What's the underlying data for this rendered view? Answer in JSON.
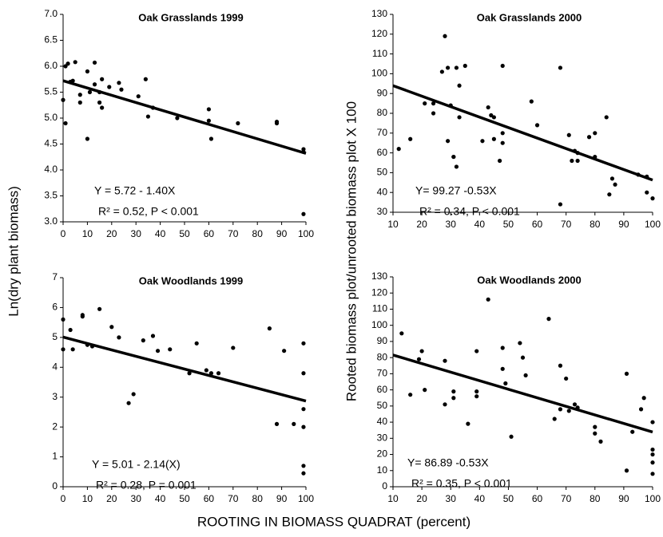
{
  "figure": {
    "xlabel": "ROOTING IN BIOMASS QUADRAT (percent)",
    "ylabel_left": "Ln(dry plant biomass)",
    "ylabel_right": "Rooted biomass plot/unrooted biomass plot X 100"
  },
  "chart_data": [
    {
      "type": "scatter",
      "title": "Oak Grasslands 1999",
      "color": "#000000",
      "x": [
        0,
        1,
        2,
        1,
        3,
        4,
        5,
        7,
        7,
        10,
        10,
        11,
        13,
        13,
        15,
        15,
        16,
        16,
        19,
        23,
        24,
        31,
        34,
        35,
        37,
        47,
        60,
        60,
        61,
        72,
        88,
        88,
        99,
        99,
        99
      ],
      "values": [
        5.35,
        6.0,
        6.05,
        4.9,
        5.7,
        5.72,
        6.08,
        5.3,
        5.45,
        5.9,
        4.6,
        5.5,
        6.07,
        5.65,
        5.5,
        5.3,
        5.2,
        5.75,
        5.6,
        5.68,
        5.55,
        5.42,
        5.75,
        5.03,
        5.2,
        5.0,
        5.17,
        4.95,
        4.6,
        4.9,
        4.9,
        4.93,
        4.35,
        4.4,
        3.15
      ],
      "fit": {
        "x": [
          0,
          100
        ],
        "values": [
          5.72,
          4.32
        ]
      },
      "annotations": [
        "Y = 5.72 - 1.40X",
        "R² = 0.52, P < 0.001"
      ],
      "xlim": [
        0,
        100
      ],
      "xticks": [
        0,
        10,
        20,
        30,
        40,
        50,
        60,
        70,
        80,
        90,
        100
      ],
      "ylim": [
        3,
        7
      ],
      "yticks": [
        {
          "value": 3,
          "label": "3.0"
        },
        3.5,
        {
          "value": 4,
          "label": "4.0"
        },
        4.5,
        {
          "value": 5,
          "label": "5.0"
        },
        5.5,
        {
          "value": 6,
          "label": "6.0"
        },
        6.5,
        {
          "value": 7,
          "label": "7.0"
        }
      ]
    },
    {
      "type": "scatter",
      "title": "Oak Grasslands 2000",
      "color": "#000000",
      "x": [
        12,
        16,
        21,
        24,
        24,
        27,
        28,
        29,
        29,
        30,
        31,
        31,
        32,
        32,
        33,
        33,
        35,
        41,
        43,
        44,
        45,
        45,
        47,
        48,
        48,
        48,
        58,
        60,
        68,
        68,
        71,
        72,
        73,
        74,
        74,
        78,
        80,
        80,
        84,
        85,
        86,
        87,
        95,
        98,
        98,
        100
      ],
      "values": [
        62,
        67,
        85,
        85,
        80,
        101,
        119,
        103,
        66,
        84,
        58,
        58,
        53,
        103,
        78,
        94,
        104,
        66,
        83,
        79,
        78,
        67,
        56,
        104,
        65,
        70,
        86,
        74,
        34,
        103,
        69,
        56,
        61,
        60,
        56,
        68,
        70,
        58,
        78,
        39,
        47,
        44,
        49,
        40,
        48,
        37
      ],
      "fit": {
        "x": [
          10,
          100
        ],
        "values": [
          93.97,
          46.27
        ]
      },
      "annotations": [
        "Y= 99.27 -0.53X",
        "R² = 0.34,  P < 0.001"
      ],
      "xlim": [
        10,
        100
      ],
      "xticks": [
        10,
        20,
        30,
        40,
        50,
        60,
        70,
        80,
        90,
        100
      ],
      "ylim": [
        30,
        130
      ],
      "yticks": [
        30,
        40,
        50,
        60,
        70,
        80,
        90,
        100,
        110,
        120,
        130
      ]
    },
    {
      "type": "scatter",
      "title": "Oak Woodlands 1999",
      "color": "#000000",
      "x": [
        0,
        0,
        3,
        4,
        8,
        8,
        10,
        12,
        15,
        20,
        23,
        27,
        29,
        33,
        37,
        39,
        44,
        52,
        55,
        59,
        61,
        64,
        70,
        85,
        88,
        91,
        95,
        99,
        99,
        99,
        99,
        99,
        99
      ],
      "values": [
        4.6,
        5.6,
        5.25,
        4.6,
        5.75,
        5.7,
        4.75,
        4.7,
        5.95,
        5.35,
        5.0,
        2.8,
        3.1,
        4.9,
        5.05,
        4.55,
        4.6,
        3.8,
        4.8,
        3.9,
        3.8,
        3.8,
        4.65,
        5.3,
        2.1,
        4.55,
        2.1,
        4.8,
        3.8,
        2.6,
        2.0,
        0.7,
        0.45
      ],
      "fit": {
        "x": [
          0,
          100
        ],
        "values": [
          5.01,
          2.87
        ]
      },
      "annotations": [
        "Y = 5.01 - 2.14(X)",
        "R² = 0.28, P = 0.001"
      ],
      "xlim": [
        0,
        100
      ],
      "xticks": [
        0,
        10,
        20,
        30,
        40,
        50,
        60,
        70,
        80,
        90,
        100
      ],
      "ylim": [
        0,
        7
      ],
      "yticks": [
        0,
        1,
        2,
        3,
        4,
        5,
        6,
        7
      ]
    },
    {
      "type": "scatter",
      "title": "Oak Woodlands 2000",
      "color": "#000000",
      "x": [
        13,
        16,
        19,
        20,
        21,
        28,
        28,
        31,
        31,
        36,
        39,
        39,
        39,
        43,
        48,
        48,
        49,
        51,
        54,
        55,
        56,
        64,
        66,
        68,
        68,
        70,
        71,
        73,
        74,
        80,
        80,
        82,
        91,
        91,
        93,
        96,
        97,
        100,
        100,
        100,
        100,
        100
      ],
      "values": [
        95,
        57,
        79,
        84,
        60,
        51,
        78,
        59,
        55,
        39,
        84,
        59,
        56,
        116,
        73,
        86,
        64,
        31,
        89,
        80,
        69,
        104,
        42,
        75,
        48,
        67,
        47,
        51,
        49,
        37,
        33,
        28,
        70,
        10,
        34,
        48,
        55,
        40,
        23,
        20,
        15,
        8
      ],
      "fit": {
        "x": [
          10,
          100
        ],
        "values": [
          81.59,
          33.89
        ]
      },
      "annotations": [
        "Y= 86.89 -0.53X",
        "R² = 0.35,  P < 0.001"
      ],
      "xlim": [
        10,
        100
      ],
      "xticks": [
        10,
        20,
        30,
        40,
        50,
        60,
        70,
        80,
        90,
        100
      ],
      "ylim": [
        0,
        130
      ],
      "yticks": [
        0,
        10,
        20,
        30,
        40,
        50,
        60,
        70,
        80,
        90,
        100,
        110,
        120,
        130
      ]
    }
  ]
}
